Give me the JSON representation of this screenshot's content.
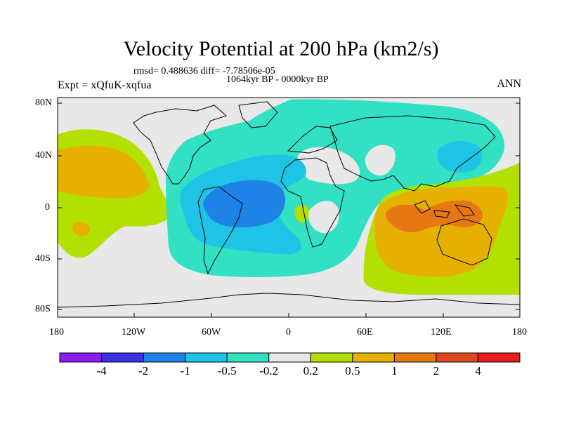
{
  "title": "Velocity Potential at 200 hPa (km2/s)",
  "stats": {
    "rmsd_label": "rmsd=",
    "rmsd_value": "0.488636",
    "diff_label": "diff=",
    "diff_value": "-7.78506e-05"
  },
  "experiment": "Expt = xQfuK-xqfua",
  "period": "1064kyr BP - 0000kyr BP",
  "season": "ANN",
  "lat_ticks": [
    "80N",
    "40N",
    "0",
    "40S",
    "80S"
  ],
  "lon_ticks": [
    "180",
    "120W",
    "60W",
    "0",
    "60E",
    "120E",
    "180"
  ],
  "colorbar": {
    "labels": [
      "-4",
      "-2",
      "-1",
      "-0.5",
      "-0.2",
      "0.2",
      "0.5",
      "1",
      "2",
      "4"
    ],
    "colors": [
      "#8a1ef0",
      "#3c32e6",
      "#1e82e6",
      "#1ec3e6",
      "#32e0c4",
      "#e8e8e8",
      "#b4e000",
      "#e6b000",
      "#e67814",
      "#e0461e",
      "#e61e1e"
    ]
  },
  "map_colors": {
    "background": "#e8e8e8",
    "coast": "#000000"
  }
}
